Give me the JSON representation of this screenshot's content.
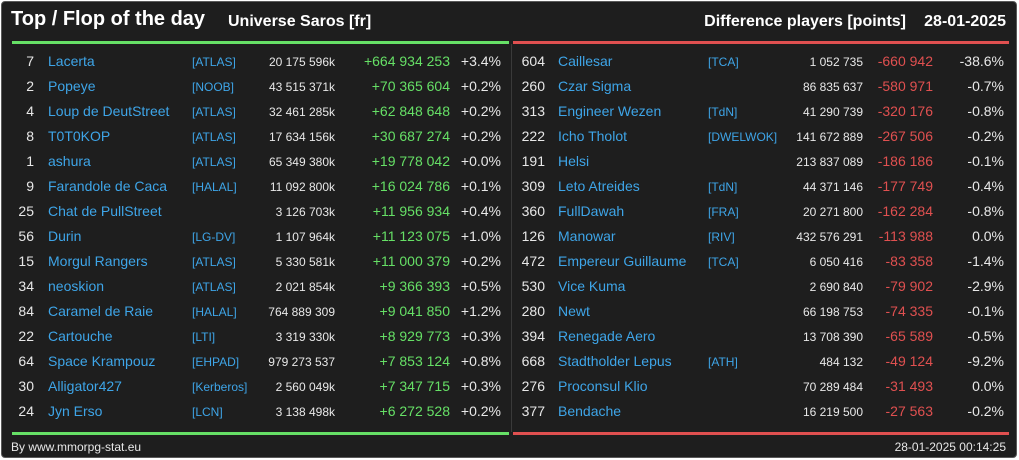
{
  "header": {
    "title": "Top / Flop of the day",
    "universe": "Universe Saros [fr]",
    "diff_label": "Difference players [points]",
    "date": "28-01-2025"
  },
  "colors": {
    "top": "#66e066",
    "flop": "#e05050",
    "link": "#3ea5e8",
    "background": "#1e1e1e"
  },
  "top": [
    {
      "rank": "7",
      "name": "Lacerta",
      "alliance": "[ATLAS]",
      "points": "20 175 596k",
      "diff": "+664 934 253",
      "pct": "+3.4%"
    },
    {
      "rank": "2",
      "name": "Popeye",
      "alliance": "[NOOB]",
      "points": "43 515 371k",
      "diff": "+70 365 604",
      "pct": "+0.2%"
    },
    {
      "rank": "4",
      "name": "Loup de DeutStreet",
      "alliance": "[ATLAS]",
      "points": "32 461 285k",
      "diff": "+62 848 648",
      "pct": "+0.2%"
    },
    {
      "rank": "8",
      "name": "T0T0KOP",
      "alliance": "[ATLAS]",
      "points": "17 634 156k",
      "diff": "+30 687 274",
      "pct": "+0.2%"
    },
    {
      "rank": "1",
      "name": "ashura",
      "alliance": "[ATLAS]",
      "points": "65 349 380k",
      "diff": "+19 778 042",
      "pct": "+0.0%"
    },
    {
      "rank": "9",
      "name": "Farandole de Caca",
      "alliance": "[HALAL]",
      "points": "11 092 800k",
      "diff": "+16 024 786",
      "pct": "+0.1%"
    },
    {
      "rank": "25",
      "name": "Chat de PullStreet",
      "alliance": "",
      "points": "3 126 703k",
      "diff": "+11 956 934",
      "pct": "+0.4%"
    },
    {
      "rank": "56",
      "name": "Durin",
      "alliance": "[LG-DV]",
      "points": "1 107 964k",
      "diff": "+11 123 075",
      "pct": "+1.0%"
    },
    {
      "rank": "15",
      "name": "Morgul Rangers",
      "alliance": "[ATLAS]",
      "points": "5 330 581k",
      "diff": "+11 000 379",
      "pct": "+0.2%"
    },
    {
      "rank": "34",
      "name": "neoskion",
      "alliance": "[ATLAS]",
      "points": "2 021 854k",
      "diff": "+9 366 393",
      "pct": "+0.5%"
    },
    {
      "rank": "84",
      "name": "Caramel de Raie",
      "alliance": "[HALAL]",
      "points": "764 889 309",
      "diff": "+9 041 850",
      "pct": "+1.2%"
    },
    {
      "rank": "22",
      "name": "Cartouche",
      "alliance": "[LTI]",
      "points": "3 319 330k",
      "diff": "+8 929 773",
      "pct": "+0.3%"
    },
    {
      "rank": "64",
      "name": "Space Krampouz",
      "alliance": "[EHPAD]",
      "points": "979 273 537",
      "diff": "+7 853 124",
      "pct": "+0.8%"
    },
    {
      "rank": "30",
      "name": "Alligator427",
      "alliance": "[Kerberos]",
      "points": "2 560 049k",
      "diff": "+7 347 715",
      "pct": "+0.3%"
    },
    {
      "rank": "24",
      "name": "Jyn Erso",
      "alliance": "[LCN]",
      "points": "3 138 498k",
      "diff": "+6 272 528",
      "pct": "+0.2%"
    }
  ],
  "flop": [
    {
      "rank": "604",
      "name": "Caillesar",
      "alliance": "[TCA]",
      "points": "1 052 735",
      "diff": "-660 942",
      "pct": "-38.6%"
    },
    {
      "rank": "260",
      "name": "Czar Sigma",
      "alliance": "",
      "points": "86 835 637",
      "diff": "-580 971",
      "pct": "-0.7%"
    },
    {
      "rank": "313",
      "name": "Engineer Wezen",
      "alliance": "[TdN]",
      "points": "41 290 739",
      "diff": "-320 176",
      "pct": "-0.8%"
    },
    {
      "rank": "222",
      "name": "Icho Tholot",
      "alliance": "[DWELWOK]",
      "points": "141 672 889",
      "diff": "-267 506",
      "pct": "-0.2%"
    },
    {
      "rank": "191",
      "name": "Helsi",
      "alliance": "",
      "points": "213 837 089",
      "diff": "-186 186",
      "pct": "-0.1%"
    },
    {
      "rank": "309",
      "name": "Leto Atreides",
      "alliance": "[TdN]",
      "points": "44 371 146",
      "diff": "-177 749",
      "pct": "-0.4%"
    },
    {
      "rank": "360",
      "name": "FullDawah",
      "alliance": "[FRA]",
      "points": "20 271 800",
      "diff": "-162 284",
      "pct": "-0.8%"
    },
    {
      "rank": "126",
      "name": "Manowar",
      "alliance": "[RIV]",
      "points": "432 576 291",
      "diff": "-113 988",
      "pct": "0.0%"
    },
    {
      "rank": "472",
      "name": "Empereur Guillaume",
      "alliance": "[TCA]",
      "points": "6 050 416",
      "diff": "-83 358",
      "pct": "-1.4%"
    },
    {
      "rank": "530",
      "name": "Vice Kuma",
      "alliance": "",
      "points": "2 690 840",
      "diff": "-79 902",
      "pct": "-2.9%"
    },
    {
      "rank": "280",
      "name": "Newt",
      "alliance": "",
      "points": "66 198 753",
      "diff": "-74 335",
      "pct": "-0.1%"
    },
    {
      "rank": "394",
      "name": "Renegade Aero",
      "alliance": "",
      "points": "13 708 390",
      "diff": "-65 589",
      "pct": "-0.5%"
    },
    {
      "rank": "668",
      "name": "Stadtholder Lepus",
      "alliance": "[ATH]",
      "points": "484 132",
      "diff": "-49 124",
      "pct": "-9.2%"
    },
    {
      "rank": "276",
      "name": "Proconsul Klio",
      "alliance": "",
      "points": "70 289 484",
      "diff": "-31 493",
      "pct": "0.0%"
    },
    {
      "rank": "377",
      "name": "Bendache",
      "alliance": "",
      "points": "16 219 500",
      "diff": "-27 563",
      "pct": "-0.2%"
    }
  ],
  "footer": {
    "credit": "By www.mmorpg-stat.eu",
    "timestamp": "28-01-2025 00:14:25"
  }
}
